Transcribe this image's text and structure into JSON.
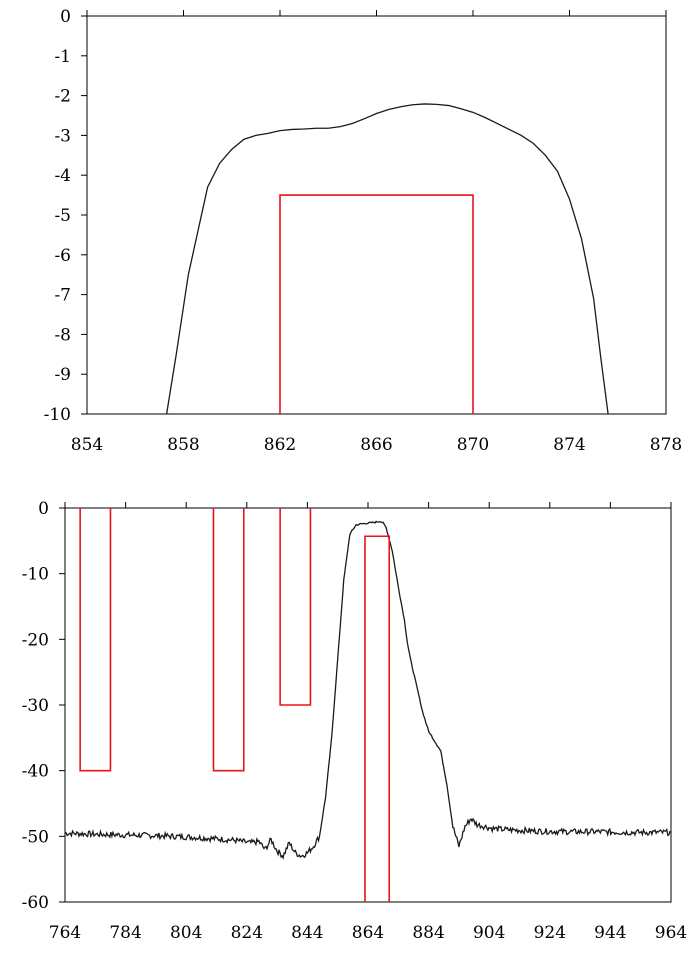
{
  "chart_data": [
    {
      "type": "line",
      "title": "",
      "xlabel": "",
      "ylabel": "",
      "xlim": [
        854,
        878
      ],
      "ylim": [
        -10,
        0
      ],
      "xticks": [
        854,
        858,
        862,
        866,
        870,
        874,
        878
      ],
      "yticks": [
        0,
        -1,
        -2,
        -3,
        -4,
        -5,
        -6,
        -7,
        -8,
        -9,
        -10
      ],
      "grid": false,
      "series": [
        {
          "color": "#1a1a1a",
          "x": [
            857.3,
            857.7,
            858.2,
            858.6,
            859.0,
            859.5,
            860.0,
            860.5,
            861.0,
            861.5,
            862.0,
            862.5,
            863.0,
            863.5,
            864.0,
            864.5,
            865.0,
            865.5,
            866.0,
            866.5,
            867.0,
            867.5,
            868.0,
            868.5,
            869.0,
            869.5,
            870.0,
            870.5,
            871.0,
            871.5,
            872.0,
            872.5,
            873.0,
            873.5,
            874.0,
            874.5,
            875.0,
            875.3,
            875.6
          ],
          "y": [
            -10.0,
            -8.5,
            -6.5,
            -5.4,
            -4.3,
            -3.7,
            -3.35,
            -3.1,
            -3.0,
            -2.95,
            -2.88,
            -2.85,
            -2.84,
            -2.82,
            -2.82,
            -2.78,
            -2.7,
            -2.58,
            -2.45,
            -2.35,
            -2.28,
            -2.23,
            -2.21,
            -2.22,
            -2.25,
            -2.33,
            -2.42,
            -2.55,
            -2.7,
            -2.85,
            -3.0,
            -3.2,
            -3.5,
            -3.9,
            -4.6,
            -5.6,
            -7.1,
            -8.6,
            -10.0
          ]
        },
        {
          "color": "#e8141c",
          "x": [
            862,
            862,
            870,
            870
          ],
          "y": [
            -10,
            -4.5,
            -4.5,
            -10
          ]
        }
      ]
    },
    {
      "type": "line",
      "title": "",
      "xlabel": "",
      "ylabel": "",
      "xlim": [
        764,
        964
      ],
      "ylim": [
        -60,
        0
      ],
      "xticks": [
        764,
        784,
        804,
        824,
        844,
        864,
        884,
        904,
        924,
        944,
        964
      ],
      "yticks": [
        0,
        -10,
        -20,
        -30,
        -40,
        -50,
        -60
      ],
      "grid": false,
      "series": [
        {
          "color": "#1a1a1a",
          "noise": true,
          "x": [
            764,
            775,
            785,
            795,
            805,
            815,
            820,
            825,
            828,
            830,
            832,
            834,
            836,
            838,
            840,
            842,
            844,
            846,
            848,
            850,
            852,
            854,
            856,
            858,
            860,
            862,
            864,
            866,
            868,
            869,
            870,
            872,
            874,
            876,
            877,
            878,
            880,
            882,
            884,
            886,
            888,
            890,
            892,
            894,
            896,
            898,
            900,
            905,
            910,
            920,
            930,
            940,
            950,
            964
          ],
          "y": [
            -49.5,
            -49.7,
            -49.8,
            -49.9,
            -50.1,
            -50.4,
            -50.6,
            -51.0,
            -50.8,
            -52.0,
            -50.5,
            -52.2,
            -53.0,
            -51.0,
            -52.5,
            -53.0,
            -52.5,
            -51.5,
            -50.0,
            -44.0,
            -35.0,
            -23.0,
            -11.0,
            -4.0,
            -2.6,
            -2.4,
            -2.3,
            -2.2,
            -2.0,
            -2.3,
            -3.0,
            -6.5,
            -12.0,
            -17.0,
            -20.5,
            -23.0,
            -27.0,
            -31.0,
            -34.0,
            -35.5,
            -37.0,
            -42.0,
            -48.5,
            -51.5,
            -48.5,
            -47.3,
            -48.2,
            -48.8,
            -49.0,
            -49.2,
            -49.3,
            -49.3,
            -49.4,
            -49.4
          ]
        },
        {
          "color": "#e8141c",
          "x": [
            769,
            769,
            779,
            779
          ],
          "y": [
            0,
            -40,
            -40,
            0
          ]
        },
        {
          "color": "#e8141c",
          "x": [
            813,
            813,
            823,
            823
          ],
          "y": [
            0,
            -40,
            -40,
            0
          ]
        },
        {
          "color": "#e8141c",
          "x": [
            835,
            835,
            845,
            845,
            845
          ],
          "y": [
            0,
            -30,
            -30,
            -15,
            0
          ]
        },
        {
          "color": "#e8141c",
          "x": [
            863,
            863,
            871,
            871
          ],
          "y": [
            -60,
            -4.3,
            -4.3,
            -60
          ]
        }
      ]
    }
  ]
}
